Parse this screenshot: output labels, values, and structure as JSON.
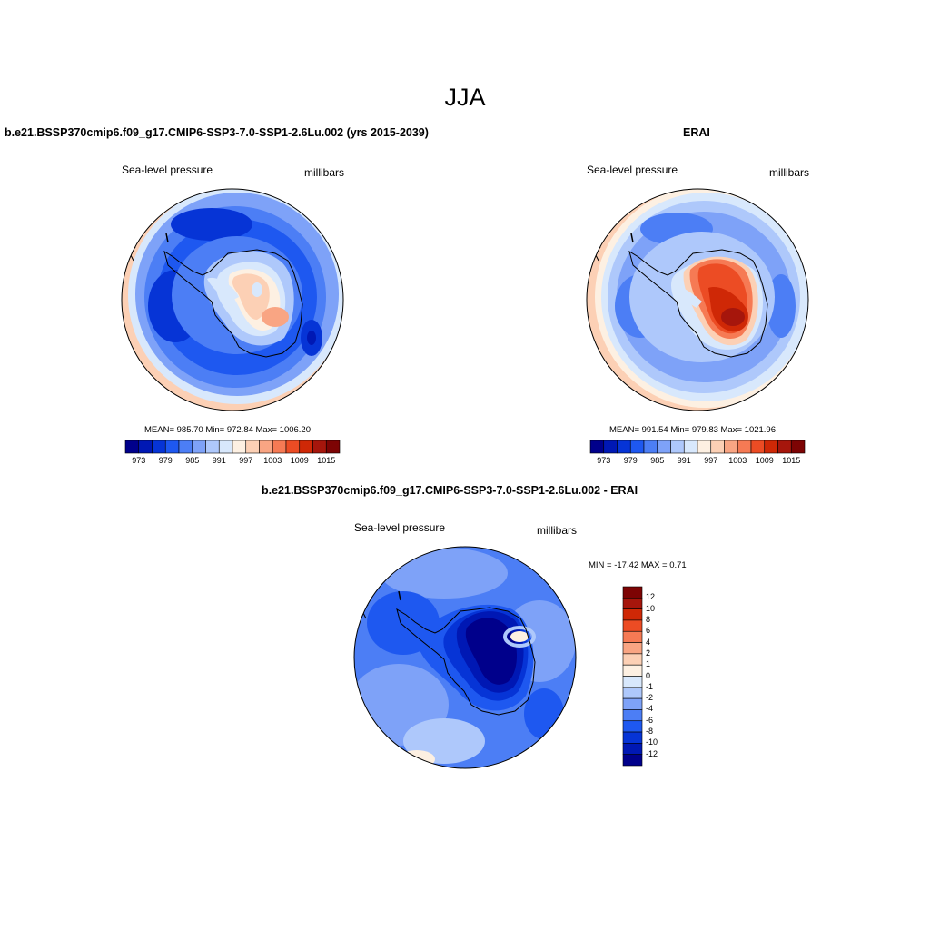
{
  "title": "JJA",
  "panels": [
    {
      "title": "b.e21.BSSP370cmip6.f09_g17.CMIP6-SSP3-7.0-SSP1-2.6Lu.002 (yrs 2015-2039)",
      "left_label": "Sea-level pressure",
      "right_label": "millibars",
      "stats": "MEAN= 985.70  Min= 972.84  Max= 1006.20",
      "colorbar_ticks": [
        "973",
        "979",
        "985",
        "991",
        "997",
        "1003",
        "1009",
        "1015"
      ]
    },
    {
      "title": "ERAI",
      "left_label": "Sea-level pressure",
      "right_label": "millibars",
      "stats": "MEAN= 991.54  Min= 979.83  Max= 1021.96",
      "colorbar_ticks": [
        "973",
        "979",
        "985",
        "991",
        "997",
        "1003",
        "1009",
        "1015"
      ]
    },
    {
      "title": "b.e21.BSSP370cmip6.f09_g17.CMIP6-SSP3-7.0-SSP1-2.6Lu.002 - ERAI",
      "left_label": "Sea-level pressure",
      "right_label": "millibars",
      "stats": "MIN = -17.42 MAX =   0.71",
      "colorbar_ticks": [
        "12",
        "10",
        "8",
        "6",
        "4",
        "2",
        "1",
        "0",
        "-1",
        "-2",
        "-4",
        "-6",
        "-8",
        "-10",
        "-12"
      ]
    }
  ],
  "colors": {
    "scale_abs": [
      "#00008b",
      "#0018b4",
      "#0634d6",
      "#1e58f0",
      "#4c7ef5",
      "#7ea2f8",
      "#aec8fb",
      "#d8e8fc",
      "#fdf0e2",
      "#fcd0b5",
      "#f9a583",
      "#f67a54",
      "#ec4c24",
      "#cf2806",
      "#a6160c",
      "#7d0404"
    ],
    "scale_diff": [
      "#7d0404",
      "#a6160c",
      "#cf2806",
      "#ec4c24",
      "#f67a54",
      "#f9a583",
      "#fcd0b5",
      "#fdf0e2",
      "#d8e8fc",
      "#aec8fb",
      "#7ea2f8",
      "#4c7ef5",
      "#1e58f0",
      "#0634d6",
      "#0018b4",
      "#00008b"
    ]
  }
}
